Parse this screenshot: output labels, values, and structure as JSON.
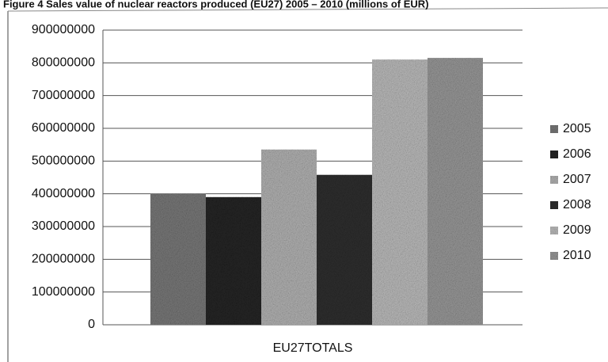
{
  "chart_data": {
    "type": "bar",
    "title": "Figure 4 Sales  value of nuclear reactors produced (EU27) 2005 – 2010 (millions of EUR)",
    "categories": [
      "EU27TOTALS"
    ],
    "series": [
      {
        "name": "2005",
        "color": "#7a7a7a",
        "values": [
          400000000
        ]
      },
      {
        "name": "2006",
        "color": "#262626",
        "values": [
          390000000
        ]
      },
      {
        "name": "2007",
        "color": "#b4b4b4",
        "values": [
          535000000
        ]
      },
      {
        "name": "2008",
        "color": "#303030",
        "values": [
          458000000
        ]
      },
      {
        "name": "2009",
        "color": "#bdbdbd",
        "values": [
          810000000
        ]
      },
      {
        "name": "2010",
        "color": "#9a9a9a",
        "values": [
          815000000
        ]
      }
    ],
    "ylim": [
      0,
      900000000
    ],
    "yticks": [
      0,
      100000000,
      200000000,
      300000000,
      400000000,
      500000000,
      600000000,
      700000000,
      800000000,
      900000000
    ],
    "grid": true,
    "legend": "right"
  }
}
